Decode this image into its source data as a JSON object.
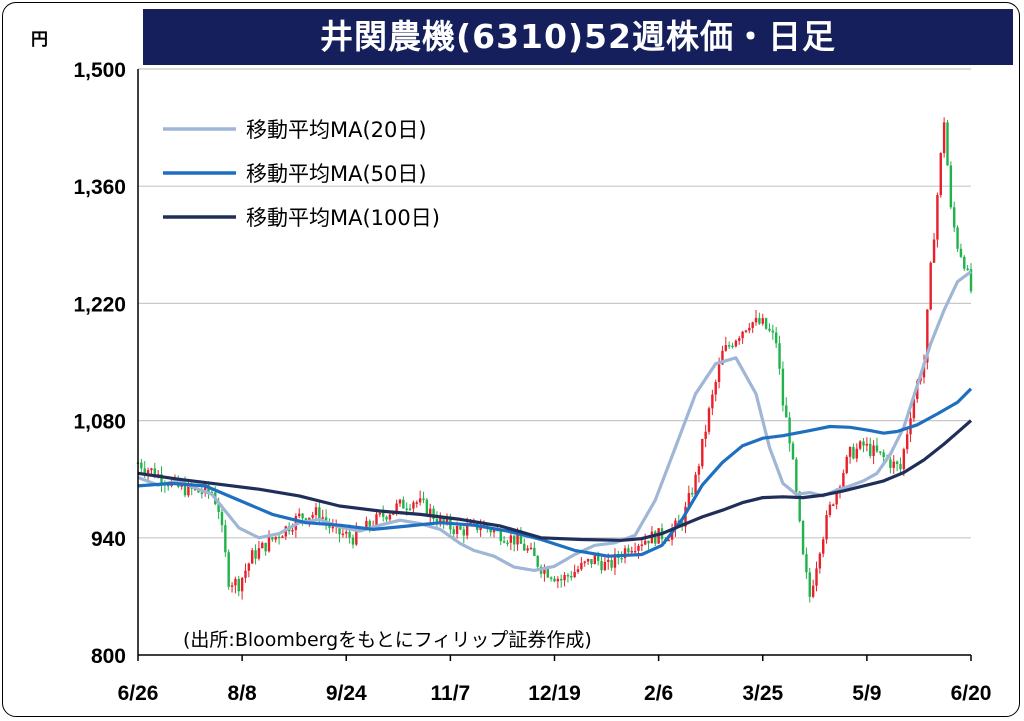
{
  "title": "井関農機(6310)52週株価・日足",
  "unit": "円",
  "source": "(出所:Bloombergをもとにフィリップ証券作成)",
  "colors": {
    "title_bg": "#141f5c",
    "candle_up": "#e8202a",
    "candle_down": "#21b24b",
    "ma20": "#9fb6d6",
    "ma50": "#1f6fc1",
    "ma100": "#1f2f5a",
    "grid": "#c8c8c8"
  },
  "chart_data": {
    "type": "candlestick",
    "title": "井関農機(6310)52週株価・日足",
    "ylabel": "円",
    "ylim": [
      800,
      1500
    ],
    "yticks": [
      800,
      940,
      1080,
      1220,
      1360,
      1500
    ],
    "ytick_labels": [
      "800",
      "940",
      "1,080",
      "1,220",
      "1,360",
      "1,500"
    ],
    "xticks": [
      "6/26",
      "8/8",
      "9/24",
      "11/7",
      "12/19",
      "2/6",
      "3/25",
      "5/9",
      "6/20"
    ],
    "grid": true,
    "legend_position": "top-left",
    "series": [
      {
        "name": "移動平均MA(20日)",
        "color": "#9fb6d6",
        "x": [
          0,
          6,
          12,
          18,
          22,
          26,
          30,
          36,
          42,
          48,
          54,
          60,
          66,
          72,
          78,
          84,
          90,
          96,
          100,
          106,
          112,
          118,
          124,
          130,
          136,
          142,
          148,
          154,
          160,
          166,
          172,
          178,
          184,
          188,
          192,
          196,
          200,
          204,
          208,
          212,
          216,
          220,
          224,
          228,
          232,
          236,
          240,
          244,
          248
        ],
        "y": [
          1012,
          1003,
          1008,
          998,
          992,
          972,
          952,
          940,
          945,
          958,
          962,
          953,
          948,
          955,
          961,
          957,
          950,
          933,
          925,
          918,
          905,
          901,
          906,
          920,
          931,
          934,
          943,
          985,
          1048,
          1112,
          1148,
          1155,
          1112,
          1048,
          1005,
          992,
          994,
          990,
          997,
          1002,
          1008,
          1017,
          1040,
          1072,
          1122,
          1172,
          1212,
          1246,
          1258
        ]
      },
      {
        "name": "移動平均MA(50日)",
        "color": "#1f6fc1",
        "x": [
          0,
          10,
          20,
          30,
          40,
          50,
          60,
          70,
          80,
          90,
          100,
          110,
          120,
          130,
          140,
          150,
          156,
          162,
          168,
          174,
          180,
          186,
          192,
          200,
          206,
          212,
          218,
          222,
          226,
          232,
          238,
          244,
          248
        ],
        "y": [
          1002,
          1005,
          1002,
          985,
          968,
          958,
          955,
          950,
          954,
          958,
          955,
          948,
          938,
          925,
          918,
          920,
          931,
          962,
          1003,
          1030,
          1050,
          1059,
          1062,
          1068,
          1073,
          1072,
          1068,
          1065,
          1067,
          1075,
          1088,
          1102,
          1118
        ]
      },
      {
        "name": "移動平均MA(100日)",
        "color": "#1f2f5a",
        "x": [
          0,
          12,
          24,
          36,
          48,
          60,
          72,
          84,
          96,
          108,
          120,
          132,
          144,
          150,
          156,
          162,
          168,
          174,
          180,
          186,
          192,
          198,
          204,
          210,
          216,
          222,
          228,
          234,
          240,
          244,
          248
        ],
        "y": [
          1017,
          1010,
          1004,
          998,
          990,
          978,
          972,
          968,
          962,
          954,
          940,
          938,
          937,
          939,
          945,
          955,
          965,
          973,
          982,
          988,
          989,
          988,
          991,
          996,
          1002,
          1008,
          1018,
          1033,
          1052,
          1066,
          1080
        ]
      }
    ]
  }
}
